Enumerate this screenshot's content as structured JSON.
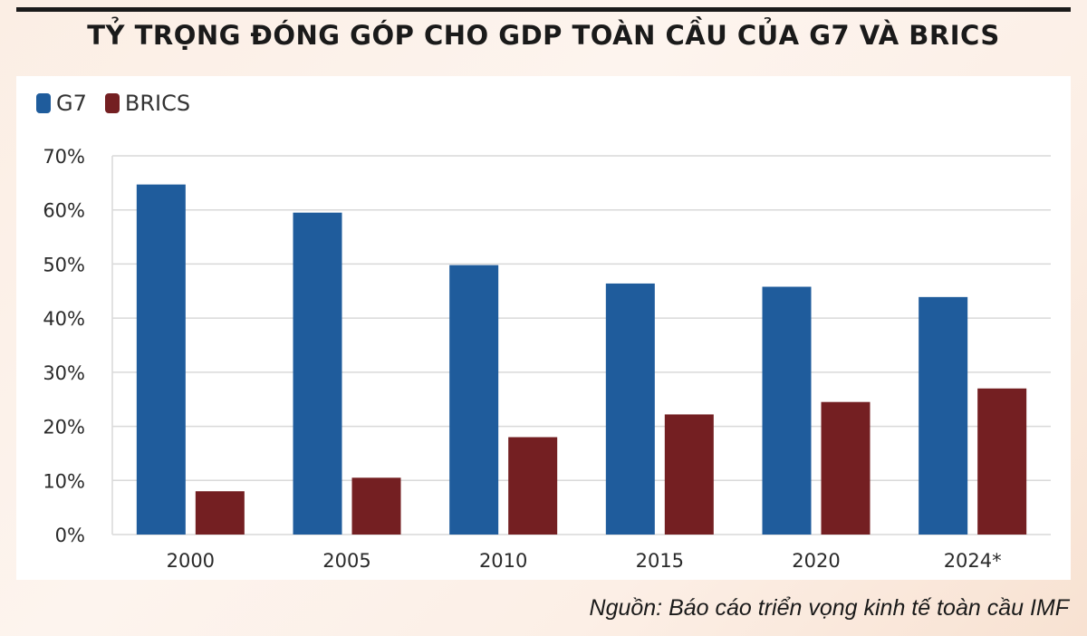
{
  "title": "TỶ TRỌNG ĐÓNG GÓP CHO GDP TOÀN CẦU CỦA G7 VÀ BRICS",
  "source": "Nguồn: Báo cáo triển vọng kinh tế toàn cầu IMF",
  "colors": {
    "g7": "#1f5c9c",
    "brics": "#741f22",
    "grid": "#d9d9d9"
  },
  "chart_data": {
    "type": "bar",
    "title": "TỶ TRỌNG ĐÓNG GÓP CHO GDP TOÀN CẦU CỦA G7 VÀ BRICS",
    "xlabel": "",
    "ylabel": "",
    "categories": [
      "2000",
      "2005",
      "2010",
      "2015",
      "2020",
      "2024*"
    ],
    "series": [
      {
        "name": "G7",
        "values": [
          64.7,
          59.5,
          49.8,
          46.4,
          45.8,
          43.9
        ]
      },
      {
        "name": "BRICS",
        "values": [
          8.0,
          10.5,
          18.0,
          22.2,
          24.5,
          27.0
        ]
      }
    ],
    "yticks": [
      "0%",
      "10%",
      "20%",
      "30%",
      "40%",
      "50%",
      "60%",
      "70%"
    ],
    "ylim": [
      0,
      70
    ],
    "grid": true,
    "legend": "top-left"
  }
}
